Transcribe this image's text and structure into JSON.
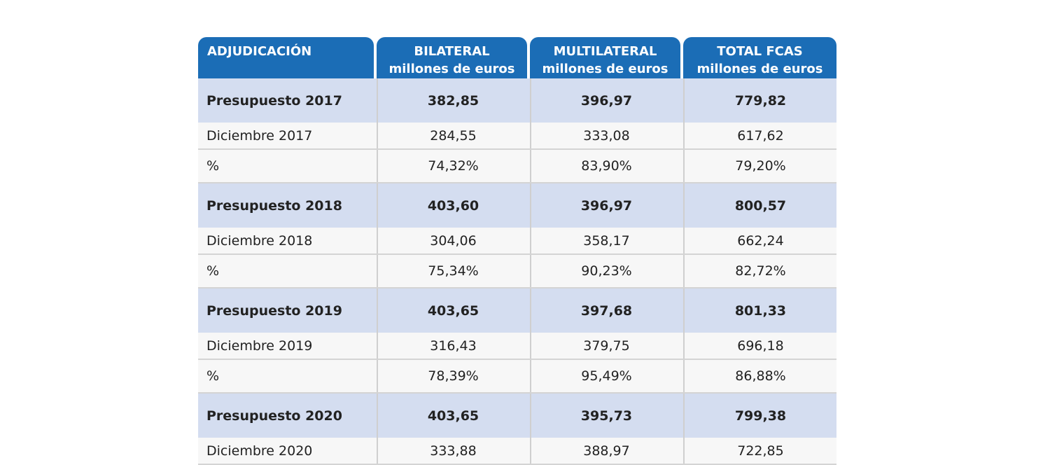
{
  "table": {
    "header": [
      [
        "ADJUDICACIÓN"
      ],
      [
        "BILATERAL",
        "millones de euros"
      ],
      [
        "MULTILATERAL",
        "millones de euros"
      ],
      [
        "TOTAL FCAS",
        "millones de euros"
      ]
    ],
    "rows": [
      [
        "Presupuesto 2017",
        "382,85",
        "396,97",
        "779,82"
      ],
      [
        "Diciembre 2017",
        "284,55",
        "333,08",
        "617,62"
      ],
      [
        "%",
        "74,32%",
        "83,90%",
        "79,20%"
      ],
      [
        "Presupuesto 2018",
        "403,60",
        "396,97",
        "800,57"
      ],
      [
        "Diciembre 2018",
        "304,06",
        "358,17",
        "662,24"
      ],
      [
        "%",
        "75,34%",
        "90,23%",
        "82,72%"
      ],
      [
        "Presupuesto 2019",
        "403,65",
        "397,68",
        "801,33"
      ],
      [
        "Diciembre 2019",
        "316,43",
        "379,75",
        "696,18"
      ],
      [
        "%",
        "78,39%",
        "95,49%",
        "86,88%"
      ],
      [
        "Presupuesto 2020",
        "403,65",
        "395,73",
        "799,38"
      ],
      [
        "Diciembre 2020",
        "333,88",
        "388,97",
        "722,85"
      ]
    ]
  }
}
